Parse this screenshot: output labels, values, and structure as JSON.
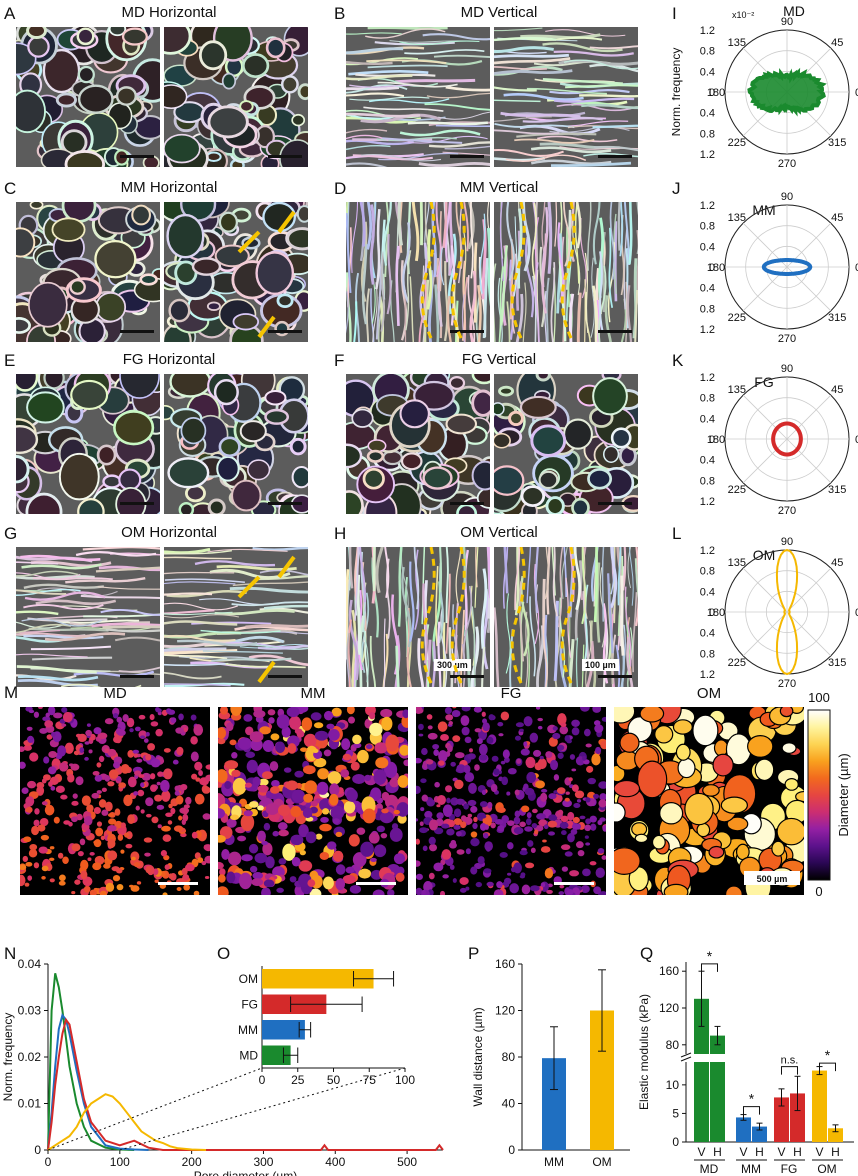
{
  "panels": {
    "A": {
      "letter": "A",
      "title": "MD Horizontal"
    },
    "B": {
      "letter": "B",
      "title": "MD Vertical"
    },
    "C": {
      "letter": "C",
      "title": "MM Horizontal"
    },
    "D": {
      "letter": "D",
      "title": "MM Vertical"
    },
    "E": {
      "letter": "E",
      "title": "FG Horizontal"
    },
    "F": {
      "letter": "F",
      "title": "FG Vertical"
    },
    "G": {
      "letter": "G",
      "title": "OM Horizontal"
    },
    "H": {
      "letter": "H",
      "title": "OM Vertical",
      "scale1": "300 µm",
      "scale2": "100 µm"
    },
    "I": {
      "letter": "I",
      "group": "MD",
      "exponent": "x10⁻²"
    },
    "J": {
      "letter": "J",
      "group": "MM"
    },
    "K": {
      "letter": "K",
      "group": "FG"
    },
    "L": {
      "letter": "L",
      "group": "OM"
    },
    "M": {
      "letter": "M",
      "maps": [
        "MD",
        "MM",
        "FG",
        "OM"
      ],
      "scale": "500 µm",
      "colorbar_label": "Diameter (µm)",
      "colorbar_max": "100",
      "colorbar_min": "0"
    },
    "N": {
      "letter": "N"
    },
    "O": {
      "letter": "O"
    },
    "P": {
      "letter": "P"
    },
    "Q": {
      "letter": "Q"
    }
  },
  "polar": {
    "angle_labels": [
      "90",
      "45",
      "0",
      "315",
      "270",
      "225",
      "180",
      "135"
    ],
    "radial_ticks": [
      "1.2",
      "0.8",
      "0.4",
      "0",
      "0.4",
      "0.8",
      "1.2"
    ],
    "ylabel": "Norm. frequency"
  },
  "chart_data": [
    {
      "id": "N",
      "type": "line",
      "xlabel": "Pore diameter (µm)",
      "ylabel": "Norm. frequency",
      "xlim": [
        0,
        550
      ],
      "ylim": [
        0,
        0.04
      ],
      "xticks": [
        "0",
        "100",
        "200",
        "300",
        "400",
        "500"
      ],
      "yticks": [
        "0",
        "0.01",
        "0.02",
        "0.03",
        "0.04"
      ],
      "series": [
        {
          "group": "MD",
          "color": "#1a8a2e",
          "x": [
            0,
            5,
            10,
            15,
            20,
            25,
            30,
            40,
            50,
            60,
            80,
            100,
            120
          ],
          "y": [
            0,
            0.03,
            0.038,
            0.035,
            0.03,
            0.024,
            0.018,
            0.01,
            0.005,
            0.002,
            0.0005,
            0.0001,
            0
          ]
        },
        {
          "group": "MM",
          "color": "#1f6fc1",
          "x": [
            0,
            5,
            10,
            15,
            20,
            25,
            30,
            40,
            50,
            60,
            80,
            100,
            120,
            140
          ],
          "y": [
            0,
            0.008,
            0.018,
            0.026,
            0.029,
            0.028,
            0.025,
            0.017,
            0.01,
            0.005,
            0.001,
            0.0003,
            0.0001,
            0
          ]
        },
        {
          "group": "FG",
          "color": "#d42a2a",
          "x": [
            0,
            5,
            10,
            15,
            20,
            25,
            30,
            40,
            50,
            60,
            80,
            100,
            120,
            140,
            160,
            380,
            385,
            390,
            540,
            545,
            550
          ],
          "y": [
            0,
            0.006,
            0.014,
            0.02,
            0.025,
            0.028,
            0.027,
            0.019,
            0.011,
            0.006,
            0.002,
            0.001,
            0.002,
            0.0005,
            0,
            0,
            0.001,
            0,
            0,
            0.001,
            0
          ]
        },
        {
          "group": "OM",
          "color": "#f5b800",
          "x": [
            0,
            10,
            20,
            30,
            40,
            50,
            60,
            70,
            80,
            90,
            100,
            110,
            120,
            130,
            140,
            150,
            160,
            170,
            180,
            200,
            220
          ],
          "y": [
            0,
            0.001,
            0.002,
            0.003,
            0.005,
            0.008,
            0.01,
            0.011,
            0.012,
            0.0115,
            0.01,
            0.008,
            0.006,
            0.004,
            0.003,
            0.002,
            0.0015,
            0.0008,
            0.0004,
            0.0001,
            0
          ]
        }
      ]
    },
    {
      "id": "O",
      "type": "bar",
      "orientation": "horizontal",
      "categories": [
        "OM",
        "FG",
        "MM",
        "MD"
      ],
      "values": [
        78,
        45,
        30,
        20
      ],
      "errors": [
        14,
        25,
        4,
        5
      ],
      "colors": [
        "#f5b800",
        "#d42a2a",
        "#1f6fc1",
        "#1a8a2e"
      ],
      "xlim": [
        0,
        100
      ],
      "xticks": [
        "0",
        "25",
        "50",
        "75",
        "100"
      ]
    },
    {
      "id": "P",
      "type": "bar",
      "categories": [
        "MM",
        "OM"
      ],
      "values": [
        79,
        120
      ],
      "errors": [
        27,
        35
      ],
      "colors": [
        "#1f6fc1",
        "#f5b800"
      ],
      "ylabel": "Wall distance (µm)",
      "ylim": [
        0,
        160
      ],
      "yticks": [
        "0",
        "40",
        "80",
        "120",
        "160"
      ]
    },
    {
      "id": "Q",
      "type": "bar",
      "groups": [
        "MD",
        "MM",
        "FG",
        "OM"
      ],
      "bar_labels": [
        "V",
        "H"
      ],
      "values": [
        [
          130,
          90
        ],
        [
          4.3,
          2.7
        ],
        [
          7.8,
          8.5
        ],
        [
          12.5,
          2.4
        ]
      ],
      "errors": [
        [
          30,
          10
        ],
        [
          0.5,
          0.6
        ],
        [
          1.5,
          3.0
        ],
        [
          0.7,
          0.6
        ]
      ],
      "colors": [
        "#1a8a2e",
        "#1f6fc1",
        "#d42a2a",
        "#f5b800"
      ],
      "significance": [
        "*",
        "*",
        "n.s.",
        "*"
      ],
      "ylabel": "Elastic modulus (kPa)",
      "yticks_low": [
        "0",
        "5",
        "10"
      ],
      "yticks_high": [
        "80",
        "120",
        "160"
      ]
    }
  ]
}
